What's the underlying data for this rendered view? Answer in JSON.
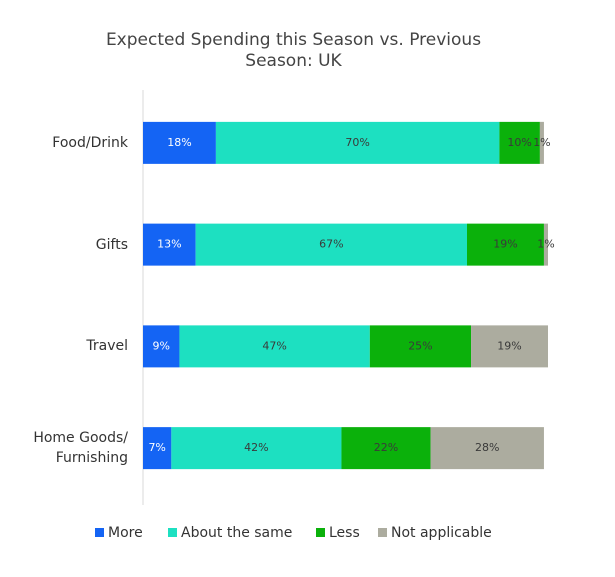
{
  "chart_data": {
    "type": "stacked-bar-horizontal",
    "title": "Expected Spending this Season vs. Previous\nSeason: UK",
    "categories": [
      "Food/Drink",
      "Gifts",
      "Travel",
      "Home Goods/\nFurnishing"
    ],
    "xlim": [
      0,
      100
    ],
    "series": [
      {
        "name": "More",
        "color": "#1464f4",
        "values": [
          18,
          13,
          9,
          7
        ],
        "value_labels": [
          "18%",
          "13%",
          "9%",
          "7%"
        ]
      },
      {
        "name": "About the same",
        "color": "#1de0c1",
        "values": [
          70,
          67,
          47,
          42
        ],
        "value_labels": [
          "70%",
          "67%",
          "47%",
          "42%"
        ]
      },
      {
        "name": "Less",
        "color": "#0bb10b",
        "values": [
          10,
          19,
          25,
          22
        ],
        "value_labels": [
          "10%",
          "19%",
          "25%",
          "22%"
        ]
      },
      {
        "name": "Not applicable",
        "color": "#acac9f",
        "values": [
          1,
          1,
          19,
          28
        ],
        "value_labels": [
          "1%",
          "1%",
          "19%",
          "28%"
        ]
      }
    ],
    "legend": "bottom"
  }
}
